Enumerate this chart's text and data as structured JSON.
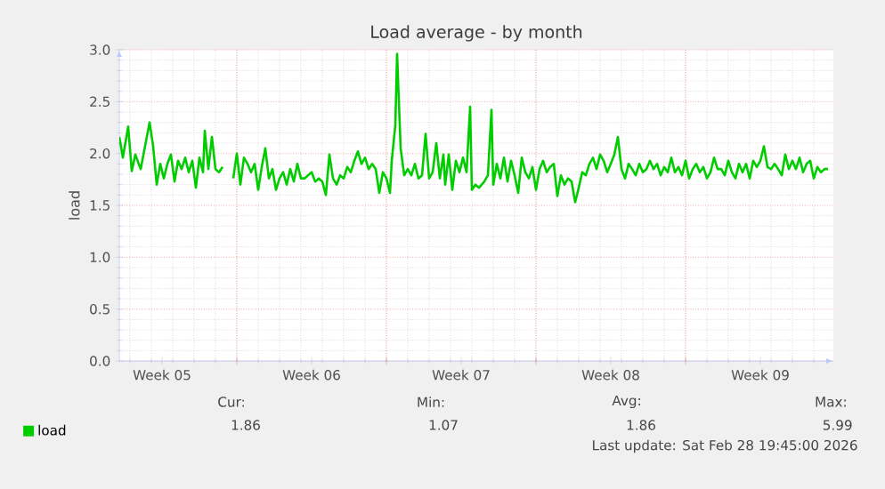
{
  "chart_data": {
    "type": "line",
    "title": "Load average - by month",
    "ylabel": "load",
    "x": [
      "2026-01-27T12:00",
      "2026-01-27T16:00",
      "2026-01-27T22:00",
      "2026-01-28T02:00",
      "2026-01-28T06:00",
      "2026-01-28T12:00",
      "2026-01-28T16:00",
      "2026-01-28T22:00",
      "2026-01-29T02:00",
      "2026-01-29T06:00",
      "2026-01-29T10:00",
      "2026-01-29T14:00",
      "2026-01-29T18:00",
      "2026-01-29T22:00",
      "2026-01-30T02:00",
      "2026-01-30T06:00",
      "2026-01-30T10:00",
      "2026-01-30T14:00",
      "2026-01-30T18:00",
      "2026-01-30T22:00",
      "2026-01-31T02:00",
      "2026-01-31T06:00",
      "2026-01-31T10:00",
      "2026-01-31T12:00",
      "2026-01-31T16:00",
      "2026-01-31T20:00",
      "2026-02-01T00:00",
      "2026-02-01T04:00",
      "2026-02-01T08:00",
      "2026-02-01T16:00",
      "2026-02-01T20:00",
      "2026-02-02T00:00",
      "2026-02-02T04:00",
      "2026-02-02T08:00",
      "2026-02-02T12:00",
      "2026-02-02T16:00",
      "2026-02-02T20:00",
      "2026-02-03T00:00",
      "2026-02-03T04:00",
      "2026-02-03T08:00",
      "2026-02-03T12:00",
      "2026-02-03T16:00",
      "2026-02-03T20:00",
      "2026-02-04T00:00",
      "2026-02-04T04:00",
      "2026-02-04T08:00",
      "2026-02-04T12:00",
      "2026-02-04T16:00",
      "2026-02-04T20:00",
      "2026-02-05T00:00",
      "2026-02-05T04:00",
      "2026-02-05T08:00",
      "2026-02-05T12:00",
      "2026-02-05T16:00",
      "2026-02-05T20:00",
      "2026-02-06T00:00",
      "2026-02-06T04:00",
      "2026-02-06T08:00",
      "2026-02-06T12:00",
      "2026-02-06T16:00",
      "2026-02-06T20:00",
      "2026-02-07T00:00",
      "2026-02-07T04:00",
      "2026-02-07T08:00",
      "2026-02-07T12:00",
      "2026-02-07T16:00",
      "2026-02-07T20:00",
      "2026-02-08T00:00",
      "2026-02-08T04:00",
      "2026-02-08T08:00",
      "2026-02-08T12:00",
      "2026-02-08T16:00",
      "2026-02-08T20:00",
      "2026-02-09T00:00",
      "2026-02-09T04:00",
      "2026-02-09T06:00",
      "2026-02-09T10:00",
      "2026-02-09T12:00",
      "2026-02-09T16:00",
      "2026-02-09T20:00",
      "2026-02-10T00:00",
      "2026-02-10T04:00",
      "2026-02-10T08:00",
      "2026-02-10T12:00",
      "2026-02-10T16:00",
      "2026-02-10T20:00",
      "2026-02-11T00:00",
      "2026-02-11T04:00",
      "2026-02-11T08:00",
      "2026-02-11T12:00",
      "2026-02-11T16:00",
      "2026-02-11T18:00",
      "2026-02-11T22:00",
      "2026-02-12T02:00",
      "2026-02-12T06:00",
      "2026-02-12T10:00",
      "2026-02-12T14:00",
      "2026-02-12T18:00",
      "2026-02-12T22:00",
      "2026-02-13T00:00",
      "2026-02-13T04:00",
      "2026-02-13T08:00",
      "2026-02-13T14:00",
      "2026-02-13T18:00",
      "2026-02-13T22:00",
      "2026-02-14T00:00",
      "2026-02-14T04:00",
      "2026-02-14T08:00",
      "2026-02-14T12:00",
      "2026-02-14T16:00",
      "2026-02-14T20:00",
      "2026-02-15T00:00",
      "2026-02-15T04:00",
      "2026-02-15T08:00",
      "2026-02-15T12:00",
      "2026-02-15T16:00",
      "2026-02-15T20:00",
      "2026-02-16T00:00",
      "2026-02-16T04:00",
      "2026-02-16T08:00",
      "2026-02-16T12:00",
      "2026-02-16T16:00",
      "2026-02-16T20:00",
      "2026-02-17T00:00",
      "2026-02-17T04:00",
      "2026-02-17T08:00",
      "2026-02-17T12:00",
      "2026-02-17T16:00",
      "2026-02-17T20:00",
      "2026-02-18T00:00",
      "2026-02-18T04:00",
      "2026-02-18T08:00",
      "2026-02-18T12:00",
      "2026-02-18T16:00",
      "2026-02-18T20:00",
      "2026-02-19T00:00",
      "2026-02-19T04:00",
      "2026-02-19T08:00",
      "2026-02-19T12:00",
      "2026-02-19T16:00",
      "2026-02-19T20:00",
      "2026-02-20T00:00",
      "2026-02-20T04:00",
      "2026-02-20T08:00",
      "2026-02-20T12:00",
      "2026-02-20T16:00",
      "2026-02-20T20:00",
      "2026-02-21T00:00",
      "2026-02-21T04:00",
      "2026-02-21T08:00",
      "2026-02-21T12:00",
      "2026-02-21T16:00",
      "2026-02-21T20:00",
      "2026-02-22T00:00",
      "2026-02-22T04:00",
      "2026-02-22T08:00",
      "2026-02-22T12:00",
      "2026-02-22T16:00",
      "2026-02-22T20:00",
      "2026-02-23T00:00",
      "2026-02-23T04:00",
      "2026-02-23T08:00",
      "2026-02-23T12:00",
      "2026-02-23T16:00",
      "2026-02-23T20:00",
      "2026-02-24T00:00",
      "2026-02-24T04:00",
      "2026-02-24T08:00",
      "2026-02-24T12:00",
      "2026-02-24T16:00",
      "2026-02-24T20:00",
      "2026-02-25T00:00",
      "2026-02-25T04:00",
      "2026-02-25T08:00",
      "2026-02-25T12:00",
      "2026-02-25T16:00",
      "2026-02-25T20:00",
      "2026-02-26T00:00",
      "2026-02-26T04:00",
      "2026-02-26T08:00",
      "2026-02-26T12:00",
      "2026-02-26T16:00",
      "2026-02-26T20:00",
      "2026-02-27T00:00",
      "2026-02-27T04:00",
      "2026-02-27T08:00",
      "2026-02-27T12:00",
      "2026-02-27T16:00",
      "2026-02-27T20:00",
      "2026-02-28T00:00",
      "2026-02-28T04:00",
      "2026-02-28T08:00",
      "2026-02-28T12:00",
      "2026-02-28T16:00",
      "2026-02-28T20:00",
      "2026-03-01T00:00",
      "2026-03-01T04:00",
      "2026-03-01T08:00",
      "2026-03-01T12:00",
      "2026-03-01T16:00"
    ],
    "series": [
      {
        "name": "load",
        "color": "#00cc00",
        "values": [
          2.16,
          1.96,
          2.26,
          1.83,
          1.99,
          1.85,
          2.03,
          2.3,
          2.07,
          1.7,
          1.9,
          1.76,
          1.9,
          1.99,
          1.73,
          1.93,
          1.85,
          1.96,
          1.82,
          1.93,
          1.67,
          1.96,
          1.82,
          2.22,
          1.85,
          2.16,
          1.85,
          1.82,
          1.87,
          null,
          1.76,
          2.0,
          1.7,
          1.96,
          1.9,
          1.82,
          1.9,
          1.65,
          1.87,
          2.05,
          1.76,
          1.85,
          1.65,
          1.76,
          1.82,
          1.7,
          1.85,
          1.73,
          1.9,
          1.76,
          1.76,
          1.79,
          1.82,
          1.73,
          1.76,
          1.73,
          1.6,
          1.99,
          1.76,
          1.7,
          1.79,
          1.76,
          1.87,
          1.82,
          1.93,
          2.02,
          1.9,
          1.96,
          1.85,
          1.9,
          1.85,
          1.62,
          1.82,
          1.76,
          1.62,
          1.93,
          2.27,
          2.96,
          2.05,
          1.79,
          1.85,
          1.79,
          1.9,
          1.76,
          1.79,
          2.19,
          1.76,
          1.82,
          2.1,
          1.76,
          1.99,
          1.7,
          1.99,
          1.65,
          1.93,
          1.82,
          1.96,
          1.82,
          2.45,
          1.65,
          1.7,
          1.67,
          1.73,
          1.79,
          2.42,
          1.7,
          1.9,
          1.76,
          1.96,
          1.73,
          1.93,
          1.79,
          1.62,
          1.96,
          1.82,
          1.76,
          1.87,
          1.65,
          1.85,
          1.93,
          1.82,
          1.87,
          1.9,
          1.59,
          1.79,
          1.7,
          1.76,
          1.73,
          1.53,
          1.67,
          1.82,
          1.79,
          1.9,
          1.96,
          1.85,
          1.99,
          1.93,
          1.82,
          1.9,
          1.99,
          2.16,
          1.85,
          1.76,
          1.9,
          1.85,
          1.79,
          1.9,
          1.82,
          1.85,
          1.93,
          1.85,
          1.9,
          1.79,
          1.87,
          1.82,
          1.96,
          1.82,
          1.87,
          1.79,
          1.93,
          1.76,
          1.85,
          1.9,
          1.82,
          1.87,
          1.76,
          1.82,
          1.96,
          1.85,
          1.85,
          1.79,
          1.93,
          1.82,
          1.76,
          1.9,
          1.82,
          1.9,
          1.76,
          1.93,
          1.87,
          1.93,
          2.07,
          1.87,
          1.85,
          1.9,
          1.85,
          1.79,
          1.99,
          1.85,
          1.93,
          1.85,
          1.96,
          1.82,
          1.9,
          1.93,
          1.76,
          1.87,
          1.82,
          1.85,
          1.85
        ]
      }
    ],
    "xlim": [
      "2026-01-27T12:00",
      "2026-03-01T22:00"
    ],
    "xticks": [
      {
        "value": "2026-01-29T12:00",
        "label": "Week 05"
      },
      {
        "value": "2026-02-02",
        "label": null
      },
      {
        "value": "2026-02-05T12:00",
        "label": "Week 06"
      },
      {
        "value": "2026-02-09",
        "label": null
      },
      {
        "value": "2026-02-12T12:00",
        "label": "Week 07"
      },
      {
        "value": "2026-02-16",
        "label": null
      },
      {
        "value": "2026-02-19T12:00",
        "label": "Week 08"
      },
      {
        "value": "2026-02-23",
        "label": null
      },
      {
        "value": "2026-02-26T12:00",
        "label": "Week 09"
      }
    ],
    "ylim": [
      0,
      3
    ],
    "yticks": [
      {
        "value": 0,
        "label": "0.0"
      },
      {
        "value": 0.5,
        "label": "0.5"
      },
      {
        "value": 1,
        "label": "1.0"
      },
      {
        "value": 1.5,
        "label": "1.5"
      },
      {
        "value": 2,
        "label": "2.0"
      },
      {
        "value": 2.5,
        "label": "2.5"
      },
      {
        "value": 3,
        "label": "3.0"
      }
    ],
    "grid": true,
    "legend": "bottom left",
    "annotations": [
      "Cur:",
      "1.86",
      "Min:",
      "1.07",
      "Avg:",
      "1.86",
      "Max:",
      "5.99",
      "Last update: Sat Feb 28 19:45:00 2026"
    ]
  }
}
